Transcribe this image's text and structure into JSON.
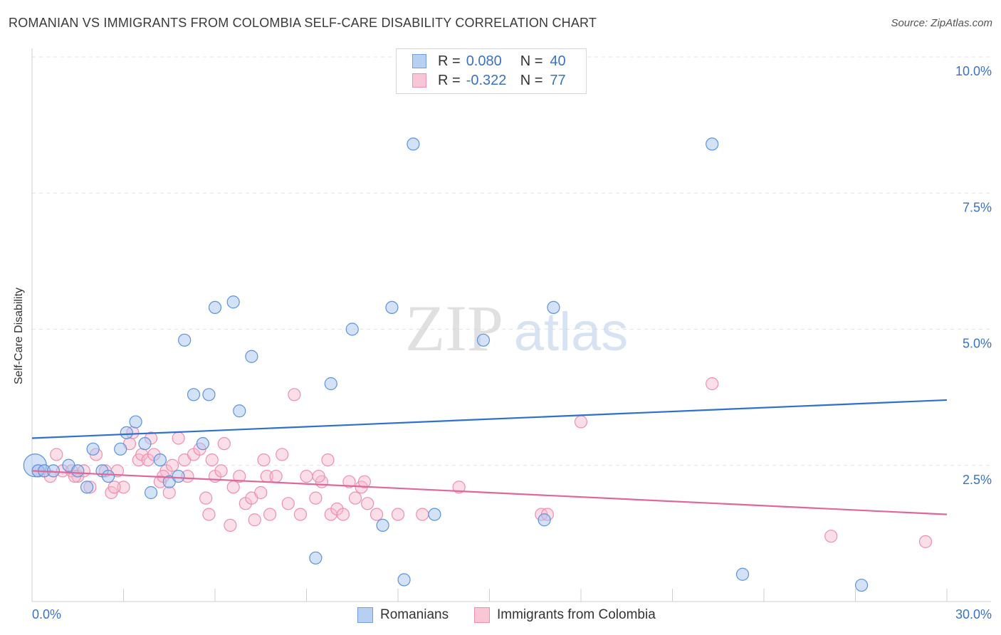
{
  "title": "ROMANIAN VS IMMIGRANTS FROM COLOMBIA SELF-CARE DISABILITY CORRELATION CHART",
  "source": "Source: ZipAtlas.com",
  "watermark": {
    "zip": "ZIP",
    "atlas": "atlas"
  },
  "legend": {
    "r_label": "R =",
    "n_label": "N =",
    "rows": [
      {
        "r": "0.080",
        "n": "40",
        "fill": "#b7d0f2",
        "stroke": "#6e9fe0"
      },
      {
        "r": "-0.322",
        "n": "77",
        "fill": "#f9c6d6",
        "stroke": "#ee8fb0"
      }
    ]
  },
  "bottom_legend": [
    "Romanians",
    "Immigrants from Colombia"
  ],
  "chart_data": {
    "type": "scatter",
    "title": "ROMANIAN VS IMMIGRANTS FROM COLOMBIA SELF-CARE DISABILITY CORRELATION CHART",
    "xlabel": "",
    "ylabel": "Self-Care Disability",
    "xlim": [
      0,
      30
    ],
    "ylim": [
      0,
      10
    ],
    "x_tick_labels": [
      "0.0%",
      "30.0%"
    ],
    "y_ticks": [
      2.5,
      5.0,
      7.5,
      10.0
    ],
    "y_tick_labels": [
      "2.5%",
      "5.0%",
      "7.5%",
      "10.0%"
    ],
    "grid": true,
    "series": [
      {
        "name": "Romanians",
        "color": "#5b93dd",
        "trend": {
          "x": [
            0,
            30
          ],
          "y": [
            3.0,
            3.7
          ]
        },
        "points": [
          [
            0.1,
            2.5
          ],
          [
            0.2,
            2.4
          ],
          [
            0.4,
            2.4
          ],
          [
            0.7,
            2.4
          ],
          [
            1.2,
            2.5
          ],
          [
            1.5,
            2.4
          ],
          [
            1.8,
            2.1
          ],
          [
            2.0,
            2.8
          ],
          [
            2.3,
            2.4
          ],
          [
            2.5,
            2.3
          ],
          [
            2.9,
            2.8
          ],
          [
            3.1,
            3.1
          ],
          [
            3.4,
            3.3
          ],
          [
            3.7,
            2.9
          ],
          [
            3.9,
            2.0
          ],
          [
            4.2,
            2.6
          ],
          [
            4.5,
            2.2
          ],
          [
            4.8,
            2.3
          ],
          [
            5.0,
            4.8
          ],
          [
            5.3,
            3.8
          ],
          [
            5.6,
            2.9
          ],
          [
            5.8,
            3.8
          ],
          [
            6.0,
            5.4
          ],
          [
            6.6,
            5.5
          ],
          [
            6.8,
            3.5
          ],
          [
            7.2,
            4.5
          ],
          [
            9.3,
            0.8
          ],
          [
            9.8,
            4.0
          ],
          [
            10.5,
            5.0
          ],
          [
            11.5,
            1.4
          ],
          [
            11.8,
            5.4
          ],
          [
            12.2,
            0.4
          ],
          [
            12.5,
            8.4
          ],
          [
            13.2,
            1.6
          ],
          [
            14.8,
            4.8
          ],
          [
            16.8,
            1.5
          ],
          [
            17.1,
            5.4
          ],
          [
            22.3,
            8.4
          ],
          [
            23.3,
            0.5
          ],
          [
            27.2,
            0.3
          ]
        ]
      },
      {
        "name": "Immigrants from Colombia",
        "color": "#e8739b",
        "trend": {
          "x": [
            0,
            30
          ],
          "y": [
            2.4,
            1.6
          ]
        },
        "points": [
          [
            0.2,
            2.4
          ],
          [
            0.4,
            2.4
          ],
          [
            0.6,
            2.3
          ],
          [
            0.8,
            2.7
          ],
          [
            1.0,
            2.4
          ],
          [
            1.3,
            2.4
          ],
          [
            1.5,
            2.3
          ],
          [
            1.7,
            2.4
          ],
          [
            1.9,
            2.1
          ],
          [
            2.1,
            2.7
          ],
          [
            2.4,
            2.4
          ],
          [
            2.6,
            2.0
          ],
          [
            2.8,
            2.4
          ],
          [
            3.0,
            2.1
          ],
          [
            3.2,
            2.9
          ],
          [
            3.3,
            3.1
          ],
          [
            3.5,
            2.6
          ],
          [
            3.6,
            2.7
          ],
          [
            3.8,
            2.6
          ],
          [
            3.9,
            3.0
          ],
          [
            4.0,
            2.7
          ],
          [
            4.2,
            2.2
          ],
          [
            4.4,
            2.4
          ],
          [
            4.5,
            2.0
          ],
          [
            4.6,
            2.5
          ],
          [
            4.8,
            3.0
          ],
          [
            5.0,
            2.6
          ],
          [
            5.1,
            2.3
          ],
          [
            5.3,
            2.7
          ],
          [
            5.5,
            2.8
          ],
          [
            5.7,
            1.9
          ],
          [
            5.8,
            1.6
          ],
          [
            6.0,
            2.3
          ],
          [
            6.2,
            2.4
          ],
          [
            6.3,
            2.9
          ],
          [
            6.5,
            1.4
          ],
          [
            6.6,
            2.1
          ],
          [
            6.8,
            2.3
          ],
          [
            7.0,
            1.8
          ],
          [
            7.2,
            1.9
          ],
          [
            7.3,
            1.5
          ],
          [
            7.5,
            2.0
          ],
          [
            7.7,
            2.3
          ],
          [
            7.8,
            1.6
          ],
          [
            8.0,
            2.3
          ],
          [
            8.2,
            2.7
          ],
          [
            8.4,
            1.8
          ],
          [
            8.6,
            3.8
          ],
          [
            8.8,
            1.6
          ],
          [
            9.0,
            2.3
          ],
          [
            9.3,
            1.9
          ],
          [
            9.5,
            2.2
          ],
          [
            9.7,
            2.6
          ],
          [
            9.8,
            1.6
          ],
          [
            10.0,
            1.7
          ],
          [
            10.2,
            1.6
          ],
          [
            10.4,
            2.2
          ],
          [
            10.6,
            1.9
          ],
          [
            10.8,
            2.1
          ],
          [
            11.0,
            1.8
          ],
          [
            11.3,
            1.6
          ],
          [
            12.0,
            1.6
          ],
          [
            12.8,
            1.6
          ],
          [
            14.0,
            2.1
          ],
          [
            16.7,
            1.6
          ],
          [
            16.9,
            1.6
          ],
          [
            18.0,
            3.3
          ],
          [
            22.3,
            4.0
          ],
          [
            26.2,
            1.2
          ],
          [
            29.3,
            1.1
          ],
          [
            1.4,
            2.3
          ],
          [
            2.7,
            2.1
          ],
          [
            4.3,
            2.3
          ],
          [
            5.9,
            2.6
          ],
          [
            7.6,
            2.6
          ],
          [
            9.4,
            2.3
          ],
          [
            10.9,
            2.2
          ]
        ]
      }
    ]
  }
}
